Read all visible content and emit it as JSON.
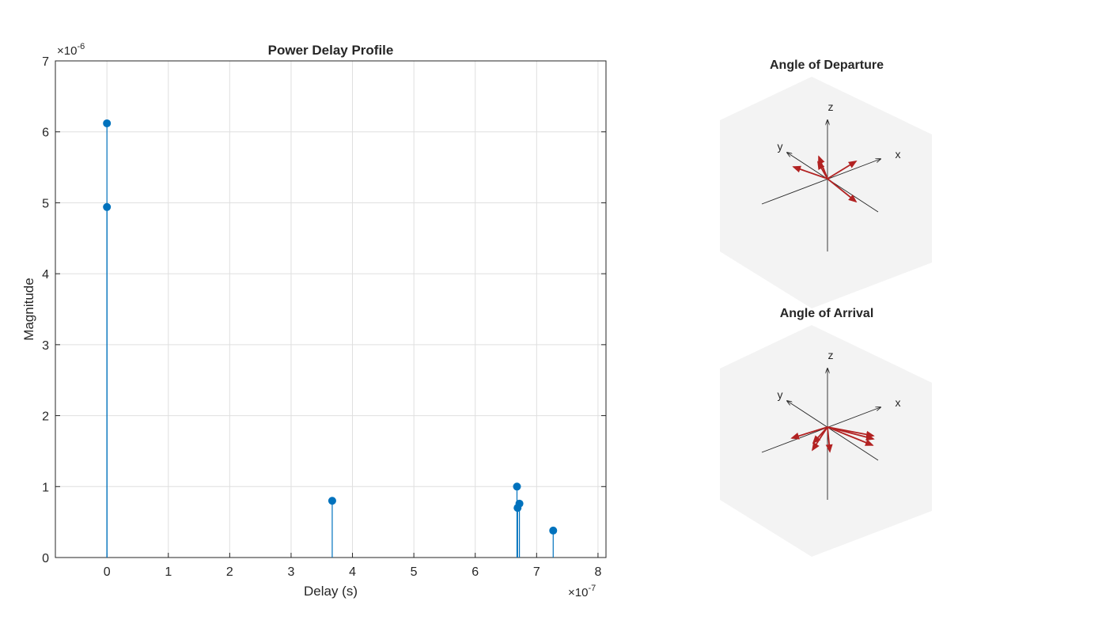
{
  "chart_data": [
    {
      "type": "stem",
      "title": "Power Delay Profile",
      "xlabel": "Delay (s)",
      "ylabel": "Magnitude",
      "x_exponent_label": "×10",
      "x_exponent": "-7",
      "y_exponent_label": "×10",
      "y_exponent": "-6",
      "xlim": [
        -0.84,
        8.13
      ],
      "ylim": [
        0,
        7
      ],
      "xticks": [
        "0",
        "1",
        "2",
        "3",
        "4",
        "5",
        "6",
        "7",
        "8"
      ],
      "yticks": [
        "0",
        "1",
        "2",
        "3",
        "4",
        "5",
        "6",
        "7"
      ],
      "grid": true,
      "x": [
        0,
        0,
        3.67,
        6.68,
        6.69,
        6.72,
        7.27
      ],
      "y": [
        6.12,
        4.94,
        0.8,
        1.0,
        0.7,
        0.76,
        0.38
      ],
      "color": "#0072BD"
    },
    {
      "type": "3d-vectors",
      "title": "Angle of Departure",
      "axis_labels": [
        "x",
        "y",
        "z"
      ],
      "arrow_color": "#B22222"
    },
    {
      "type": "3d-vectors",
      "title": "Angle of Arrival",
      "axis_labels": [
        "x",
        "y",
        "z"
      ],
      "arrow_color": "#B22222"
    }
  ]
}
